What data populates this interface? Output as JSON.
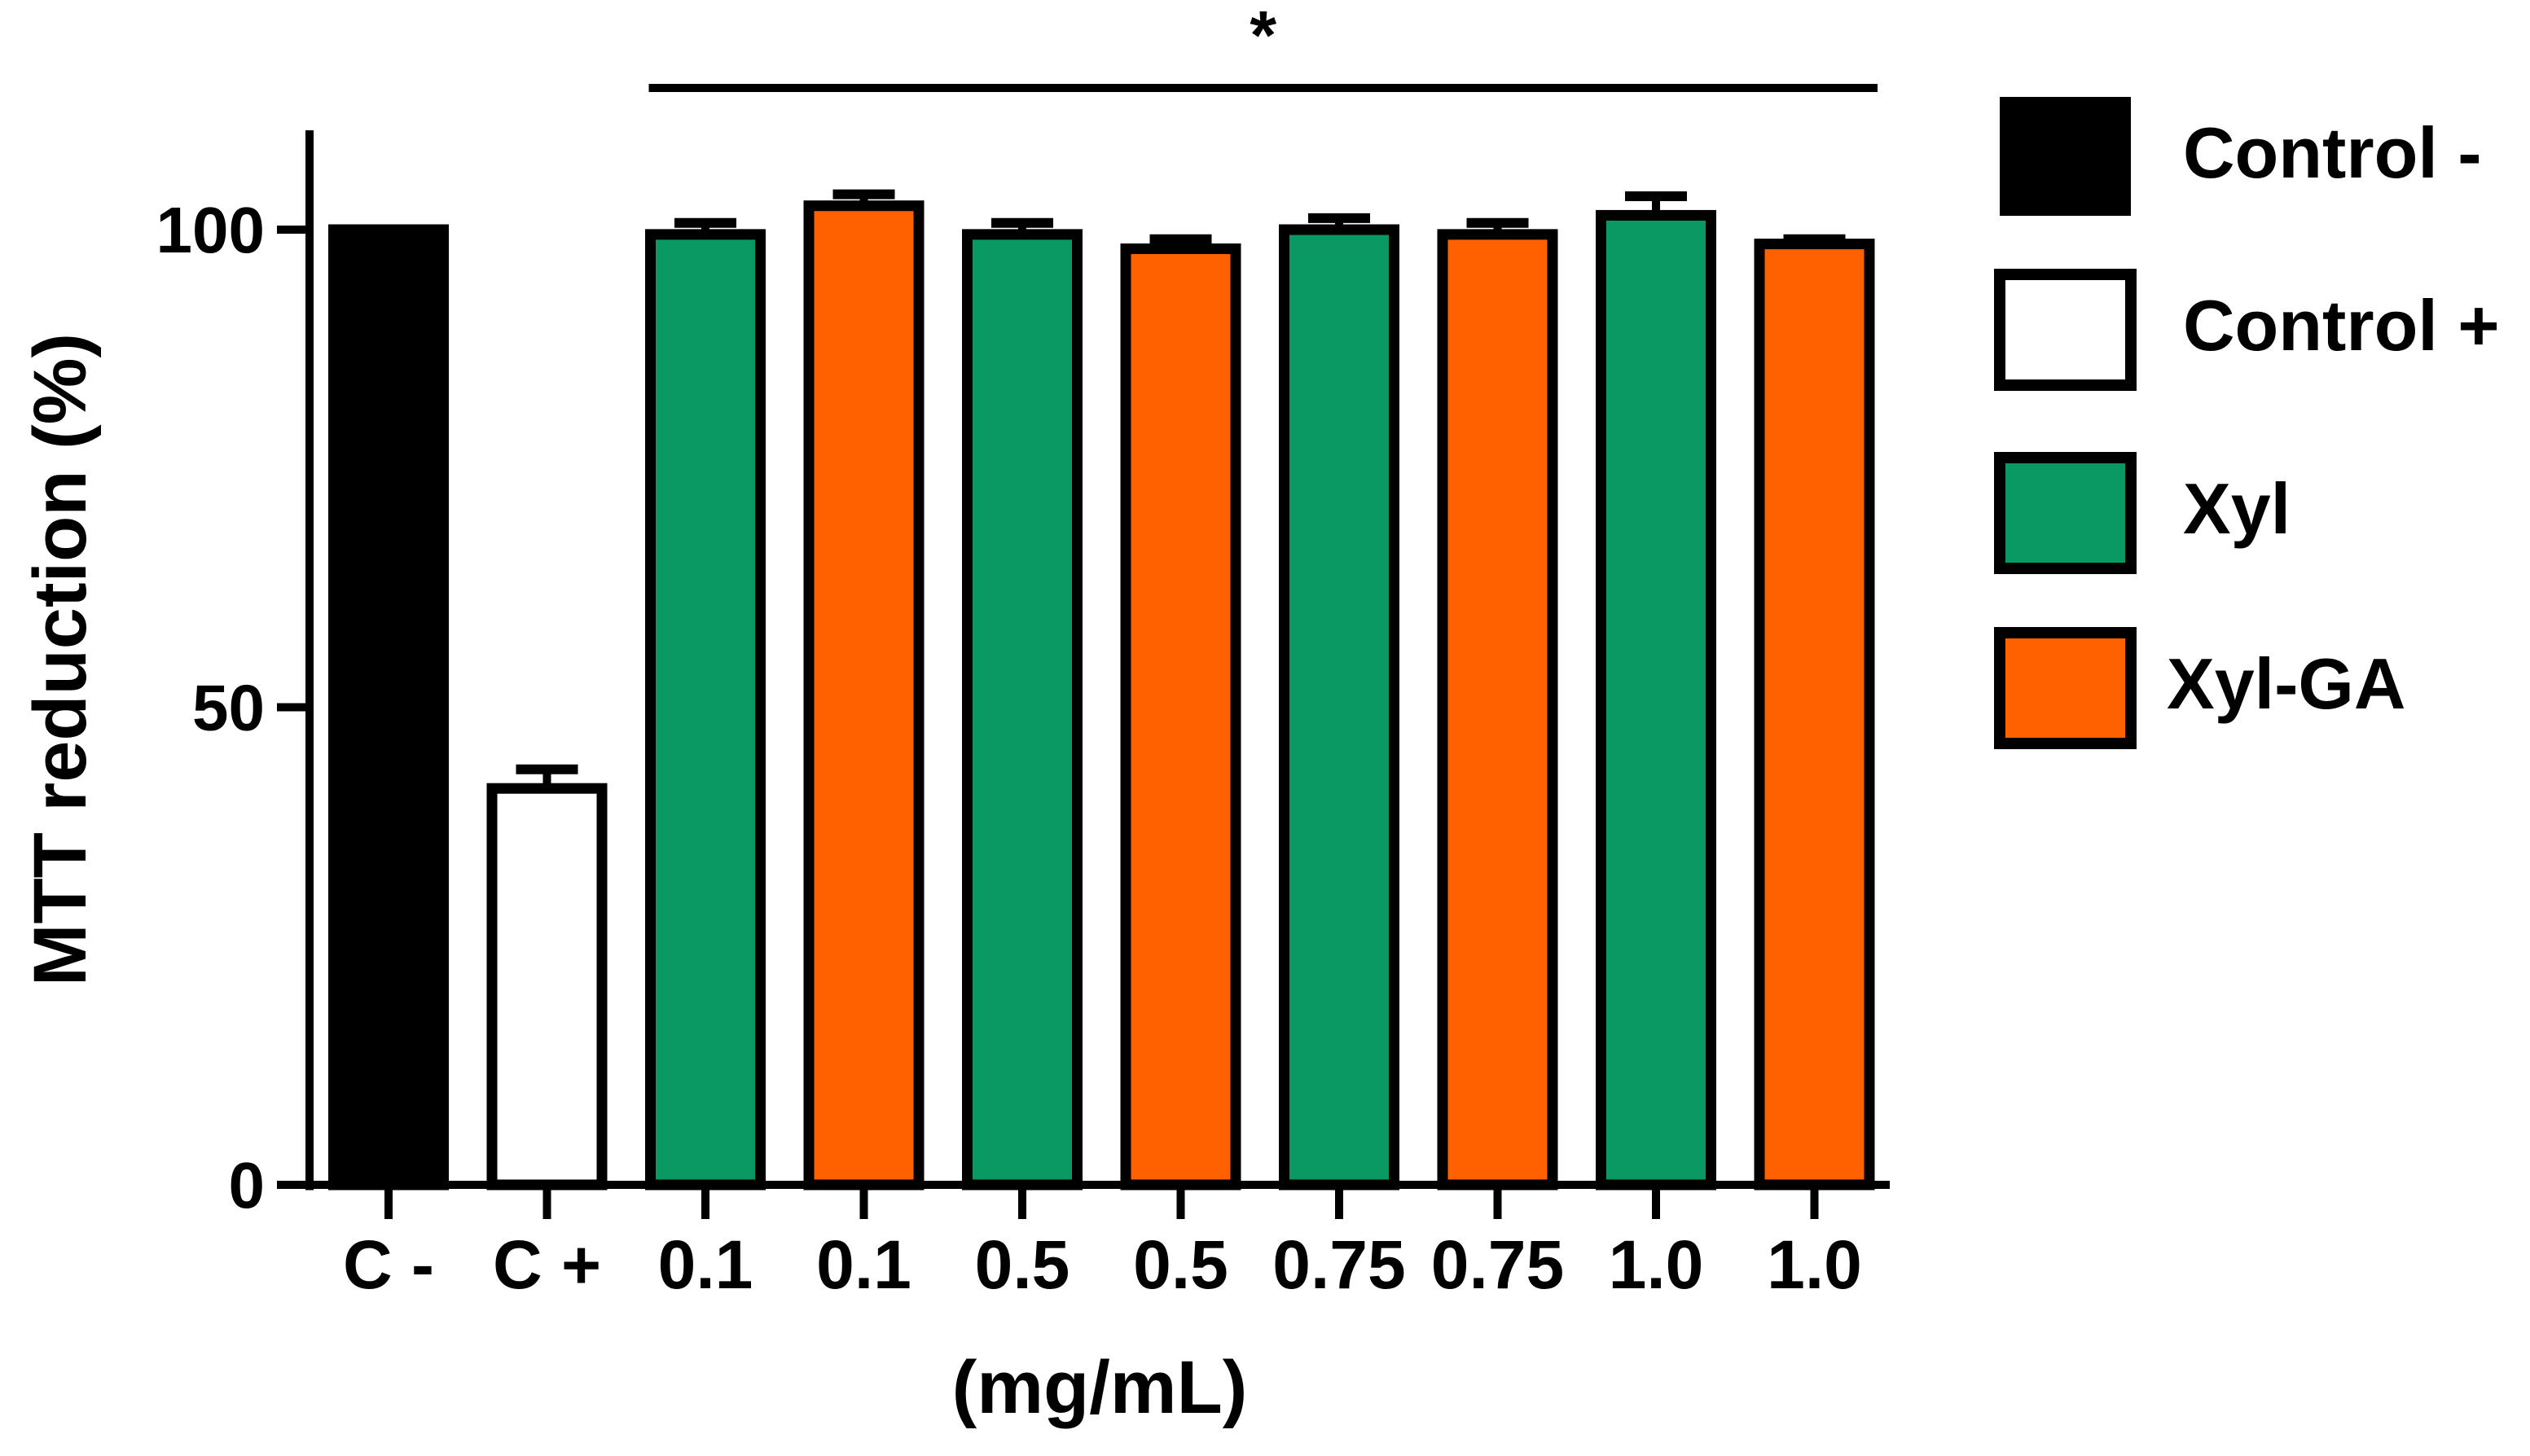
{
  "chart_data": {
    "type": "bar",
    "title": "",
    "xlabel": "(mg/mL)",
    "ylabel": "MTT reduction (%)",
    "ylim": [
      0,
      110
    ],
    "yticks": [
      0,
      50,
      100
    ],
    "grid": false,
    "legend_position": "right",
    "categories": [
      "C -",
      "C +",
      "0.1",
      "0.1",
      "0.5",
      "0.5",
      "0.75",
      "0.75",
      "1.0",
      "1.0"
    ],
    "values": [
      100,
      41.5,
      99.5,
      102.5,
      99.5,
      98,
      100,
      99.5,
      101.5,
      98.5
    ],
    "errors": [
      0,
      2,
      1.2,
      1.2,
      1.2,
      1,
      1.2,
      1.2,
      2,
      0.5
    ],
    "groups": [
      "Control -",
      "Control +",
      "Xyl",
      "Xyl-GA",
      "Xyl",
      "Xyl-GA",
      "Xyl",
      "Xyl-GA",
      "Xyl",
      "Xyl-GA"
    ],
    "legend": [
      {
        "name": "Control -",
        "color": "#000000"
      },
      {
        "name": "Control +",
        "color": "#ffffff"
      },
      {
        "name": "Xyl",
        "color": "#0a9863"
      },
      {
        "name": "Xyl-GA",
        "color": "#ff6000"
      }
    ],
    "significance": {
      "label": "*",
      "from_index": 2,
      "to_index": 9
    }
  }
}
